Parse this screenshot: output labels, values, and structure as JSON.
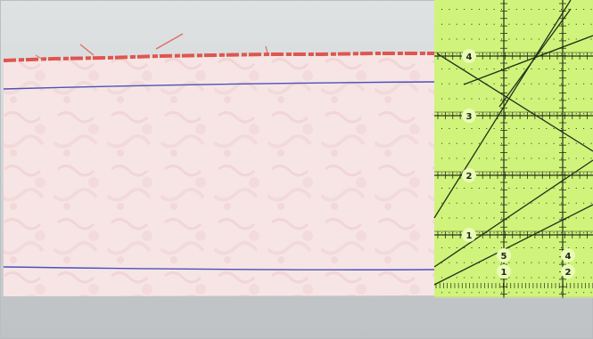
{
  "photo": {
    "subject": "quilting-fabric-strip-with-ruler",
    "colors": {
      "background": "#cdd0d2",
      "fabric": "#f3dcdc",
      "fabric_edge": "#e0554f",
      "pen_line": "#4a52b8",
      "ruler": "#c9f06a",
      "ruler_lines": "#23301a"
    }
  },
  "ruler": {
    "inch_labels": [
      "4",
      "3",
      "2",
      "1"
    ],
    "bottom_labels": [
      "5",
      "4",
      "1",
      "2"
    ]
  }
}
